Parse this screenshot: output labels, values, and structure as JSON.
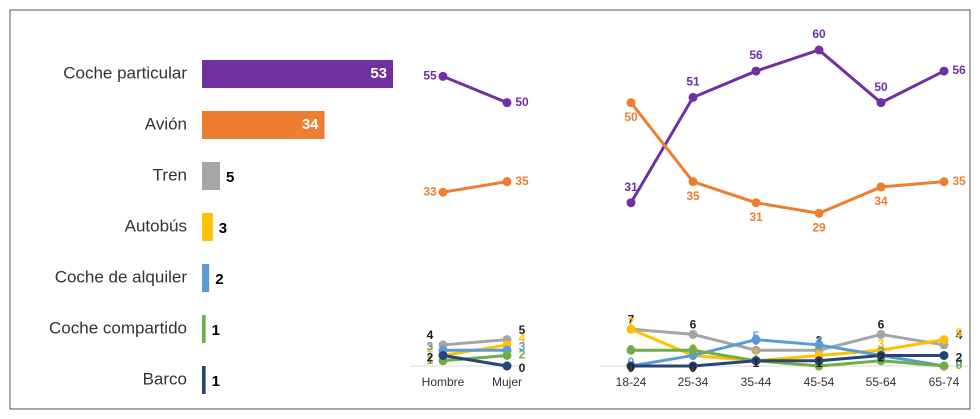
{
  "chart_data": [
    {
      "type": "hbar",
      "categories": [
        "Coche particular",
        "Avión",
        "Tren",
        "Autobús",
        "Coche de alquiler",
        "Coche compartido",
        "Barco"
      ],
      "values": [
        53,
        34,
        5,
        3,
        2,
        1,
        1
      ],
      "colors": [
        "#7030a0",
        "#ed7d31",
        "#a5a5a5",
        "#ffc000",
        "#5b9bd5",
        "#70ad47",
        "#264478"
      ]
    },
    {
      "type": "line",
      "categories": [
        "Hombre",
        "Mujer"
      ],
      "ylim": [
        0,
        60
      ],
      "series": [
        {
          "color": "#7030a0",
          "values": [
            55,
            50
          ]
        },
        {
          "color": "#ed7d31",
          "values": [
            33,
            35
          ]
        },
        {
          "color": "#a5a5a5",
          "values": [
            4,
            5
          ]
        },
        {
          "color": "#ffc000",
          "values": [
            2,
            4
          ]
        },
        {
          "color": "#5b9bd5",
          "values": [
            3,
            3
          ]
        },
        {
          "color": "#70ad47",
          "values": [
            1,
            2
          ]
        },
        {
          "color": "#264478",
          "values": [
            2,
            0
          ]
        }
      ]
    },
    {
      "type": "line",
      "categories": [
        "18-24",
        "25-34",
        "35-44",
        "45-54",
        "55-64",
        "65-74"
      ],
      "ylim": [
        0,
        60
      ],
      "series": [
        {
          "color": "#7030a0",
          "values": [
            31,
            51,
            56,
            60,
            50,
            56
          ]
        },
        {
          "color": "#ed7d31",
          "values": [
            50,
            35,
            31,
            29,
            34,
            35
          ]
        },
        {
          "color": "#a5a5a5",
          "values": [
            7,
            6,
            3,
            3,
            6,
            4
          ]
        },
        {
          "color": "#ffc000",
          "values": [
            7,
            2,
            1,
            2,
            3,
            5
          ]
        },
        {
          "color": "#5b9bd5",
          "values": [
            0,
            2,
            5,
            4,
            2,
            0
          ]
        },
        {
          "color": "#70ad47",
          "values": [
            3,
            3,
            1,
            0,
            1,
            0
          ]
        },
        {
          "color": "#264478",
          "values": [
            0,
            0,
            1,
            1,
            2,
            2
          ]
        }
      ]
    }
  ]
}
